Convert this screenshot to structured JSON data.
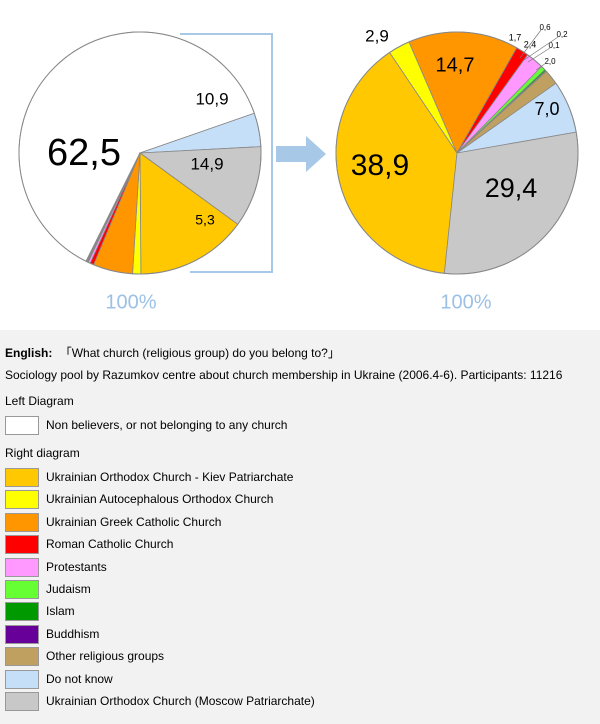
{
  "chart_data": [
    {
      "type": "pie",
      "slices": [
        {
          "label": "Non believers, or not belonging to any church",
          "value": 62.5,
          "color": "#ffffff",
          "text": "62,5"
        },
        {
          "label": "Do not know",
          "value": 4.5,
          "color": "#c6dff8",
          "text": ""
        },
        {
          "label": "Ukrainian Orthodox Church (Moscow Patriarchate)",
          "value": 10.9,
          "color": "#c8c8c8",
          "text": "10,9"
        },
        {
          "label": "Ukrainian Orthodox Church - Kiev Patriarchate",
          "value": 14.9,
          "color": "#ffc800",
          "text": "14,9"
        },
        {
          "label": "Ukrainian Autocephalous Orthodox Church",
          "value": 1.1,
          "color": "#ffff00",
          "text": ""
        },
        {
          "label": "Ukrainian Greek Catholic Church",
          "value": 5.3,
          "color": "#ff9600",
          "text": "5,3"
        },
        {
          "label": "Roman Catholic Church",
          "value": 0.5,
          "color": "#ff0000",
          "text": ""
        },
        {
          "label": "Protestants",
          "value": 0.3,
          "color": "#ff99ff",
          "text": ""
        },
        {
          "label": "Judaism",
          "value": 0.05,
          "color": "#66ff33",
          "text": ""
        },
        {
          "label": "Islam",
          "value": 0.1,
          "color": "#009900",
          "text": ""
        },
        {
          "label": "Buddhism",
          "value": 0.05,
          "color": "#660099",
          "text": ""
        },
        {
          "label": "Other religious groups",
          "value": 0.1,
          "color": "#c0a060",
          "text": ""
        }
      ],
      "footer": "100%"
    },
    {
      "type": "pie",
      "slices": [
        {
          "label": "Ukrainian Orthodox Church - Kiev Patriarchate",
          "value": 38.9,
          "color": "#ffc800",
          "text": "38,9"
        },
        {
          "label": "Ukrainian Autocephalous Orthodox Church",
          "value": 2.9,
          "color": "#ffff00",
          "text": "2,9"
        },
        {
          "label": "Ukrainian Greek Catholic Church",
          "value": 14.7,
          "color": "#ff9600",
          "text": "14,7"
        },
        {
          "label": "Roman Catholic Church",
          "value": 1.7,
          "color": "#ff0000",
          "text": "1,7"
        },
        {
          "label": "Protestants",
          "value": 2.4,
          "color": "#ff99ff",
          "text": "2,4"
        },
        {
          "label": "Judaism",
          "value": 0.6,
          "color": "#66ff33",
          "text": "0,6"
        },
        {
          "label": "Islam",
          "value": 0.2,
          "color": "#009900",
          "text": "0,2"
        },
        {
          "label": "Buddhism",
          "value": 0.1,
          "color": "#660099",
          "text": "0,1"
        },
        {
          "label": "Other religious groups",
          "value": 2.0,
          "color": "#c0a060",
          "text": "2,0"
        },
        {
          "label": "Do not know",
          "value": 7.0,
          "color": "#c6dff8",
          "text": "7,0"
        },
        {
          "label": "Ukrainian Orthodox Church (Moscow Patriarchate)",
          "value": 29.4,
          "color": "#c8c8c8",
          "text": "29,4"
        }
      ],
      "footer": "100%"
    }
  ],
  "caption": {
    "english_label": "English:",
    "question": "「What church (religious group) do you belong to?」",
    "source": "Sociology pool by Razumkov centre about church membership in Ukraine (2006.4-6). Participants: 11216",
    "left_heading": "Left Diagram",
    "right_heading": "Right diagram"
  },
  "legend_left": [
    {
      "label": "Non believers, or not belonging to any church",
      "color": "#ffffff"
    }
  ],
  "legend_right": [
    {
      "label": "Ukrainian Orthodox Church - Kiev Patriarchate",
      "color": "#ffc800"
    },
    {
      "label": "Ukrainian Autocephalous Orthodox Church",
      "color": "#ffff00"
    },
    {
      "label": "Ukrainian Greek Catholic Church",
      "color": "#ff9600"
    },
    {
      "label": "Roman Catholic Church",
      "color": "#ff0000"
    },
    {
      "label": "Protestants",
      "color": "#ff99ff"
    },
    {
      "label": "Judaism",
      "color": "#66ff33"
    },
    {
      "label": "Islam",
      "color": "#009900"
    },
    {
      "label": "Buddhism",
      "color": "#660099"
    },
    {
      "label": "Other religious groups",
      "color": "#c0a060"
    },
    {
      "label": "Do not know",
      "color": "#c6dff8"
    },
    {
      "label": "Ukrainian Orthodox Church (Moscow Patriarchate)",
      "color": "#c8c8c8"
    }
  ],
  "colors": {
    "connector": "#a8c8e8",
    "footer_text": "#9cc0e6",
    "caption_bg": "#f2f2f2"
  }
}
